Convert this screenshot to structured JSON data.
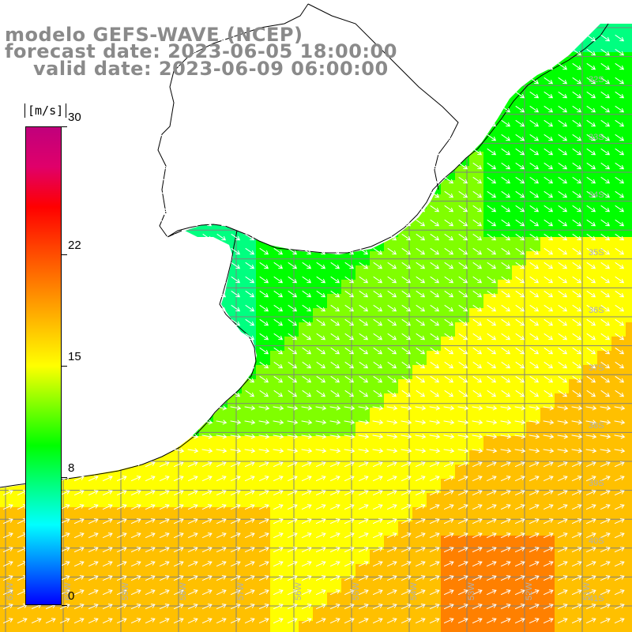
{
  "title": {
    "line1": "modelo GEFS-WAVE (NCEP)",
    "line2": "forecast date: 2023-06-05 18:00:00",
    "line3": "valid date: 2023-06-09 06:00:00"
  },
  "colorbar": {
    "unit": "[m/s]",
    "range": [
      0,
      30
    ],
    "ticks": [
      {
        "value": 30,
        "label": "30"
      },
      {
        "value": 22,
        "label": "22"
      },
      {
        "value": 15,
        "label": "15"
      },
      {
        "value": 8,
        "label": "8"
      },
      {
        "value": 0,
        "label": "0"
      }
    ],
    "colors": [
      "#0000ff",
      "#0080ff",
      "#00ffff",
      "#00ff80",
      "#00ff00",
      "#80ff00",
      "#ffff00",
      "#ffc000",
      "#ff8000",
      "#ff4000",
      "#ff0000",
      "#e0006a",
      "#c0007c"
    ]
  },
  "map": {
    "lat_labels": [
      "32S",
      "33S",
      "34S",
      "35S",
      "36S",
      "37S",
      "38S",
      "39S",
      "40S",
      "41S"
    ],
    "lon_labels": [
      "61W",
      "60W",
      "59W",
      "58W",
      "57W",
      "56W",
      "55W",
      "54W",
      "53W",
      "52W",
      "51W"
    ],
    "land_color": "#ffffff",
    "grid_color": "#808080",
    "arrow_color": "#ffffff"
  }
}
